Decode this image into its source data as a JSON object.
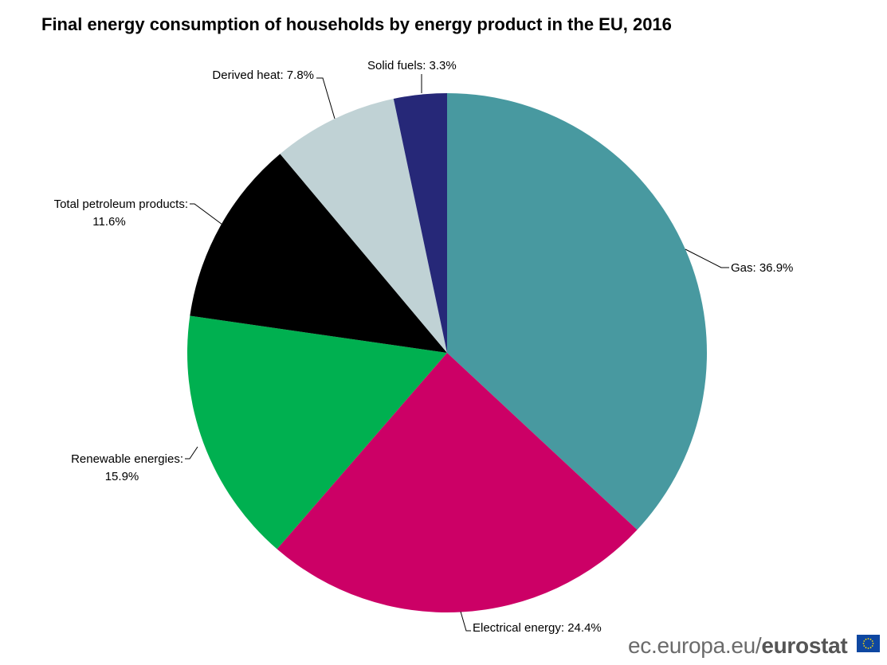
{
  "chart_data": {
    "type": "pie",
    "title": "Final energy consumption of households by energy product in the EU, 2016",
    "unit": "%",
    "start": "top, clockwise",
    "slices": [
      {
        "name": "Gas",
        "value": 36.9,
        "label_line1": "Gas: 36.9%",
        "label_line2": "",
        "color": "#4899a0"
      },
      {
        "name": "Electrical energy",
        "value": 24.4,
        "label_line1": "Electrical energy: 24.4%",
        "label_line2": "",
        "color": "#cc0066"
      },
      {
        "name": "Renewable energies",
        "value": 15.9,
        "label_line1": "Renewable energies:",
        "label_line2": "15.9%",
        "color": "#00b050"
      },
      {
        "name": "Total petroleum products",
        "value": 11.6,
        "label_line1": "Total petroleum products:",
        "label_line2": "11.6%",
        "color": "#000000"
      },
      {
        "name": "Derived heat",
        "value": 7.8,
        "label_line1": "Derived heat: 7.8%",
        "label_line2": "",
        "color": "#c0d2d5"
      },
      {
        "name": "Solid fuels",
        "value": 3.3,
        "label_line1": "Solid fuels: 3.3%",
        "label_line2": "",
        "color": "#262878"
      }
    ]
  },
  "footer": {
    "site": "ec.europa.eu/",
    "brand": "eurostat"
  }
}
